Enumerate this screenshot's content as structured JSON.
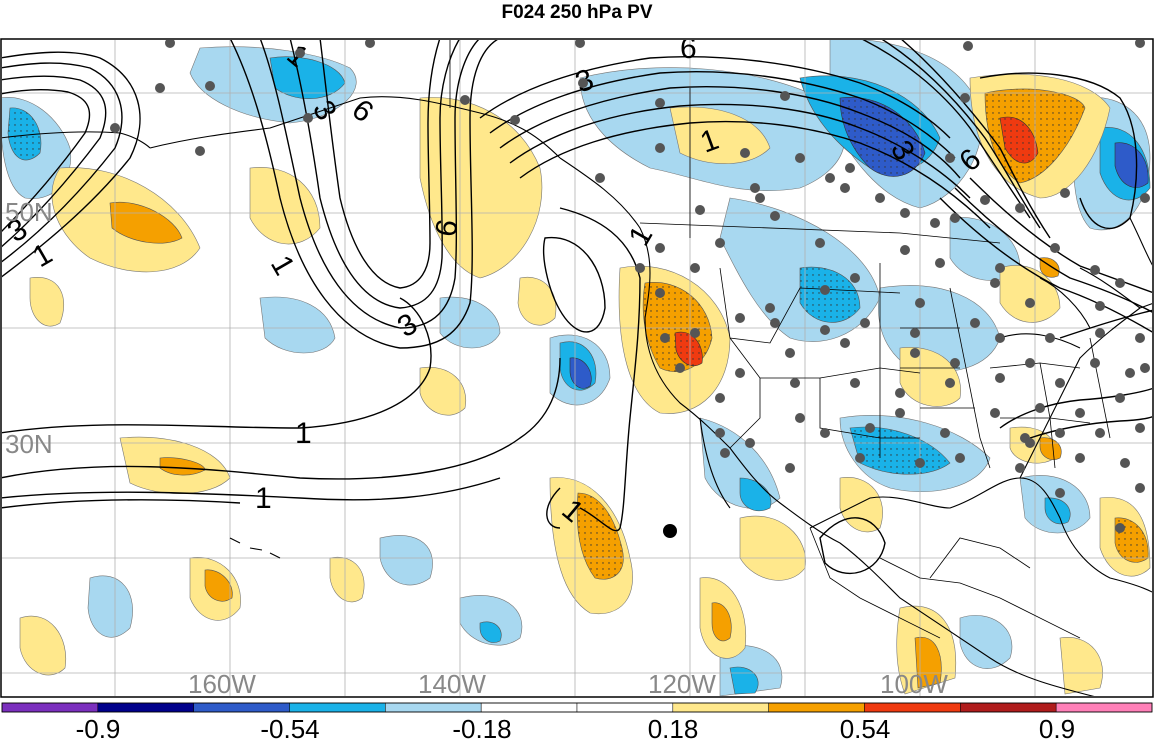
{
  "title": "F024 250 hPa PV",
  "map": {
    "lat_labels": [
      "50N",
      "30N"
    ],
    "lon_labels": [
      "160W",
      "140W",
      "120W",
      "100W"
    ],
    "contour_labels": [
      "1",
      "3",
      "6"
    ],
    "colors": {
      "ocean": "#ffffff",
      "grid": "#b0b0b0",
      "contour": "#000000",
      "coast": "#000000",
      "station": "#555555"
    }
  },
  "colorbar": {
    "labels": [
      "-0.9",
      "-0.54",
      "-0.18",
      "0.18",
      "0.54",
      "0.9"
    ],
    "colors": [
      "#7b2fbe",
      "#00008b",
      "#2e5bc9",
      "#1ab2e8",
      "#a8d8f0",
      "#ffffff",
      "#ffffff",
      "#ffe88c",
      "#f5a000",
      "#ef3a10",
      "#b01c1c",
      "#ff80b8"
    ]
  }
}
